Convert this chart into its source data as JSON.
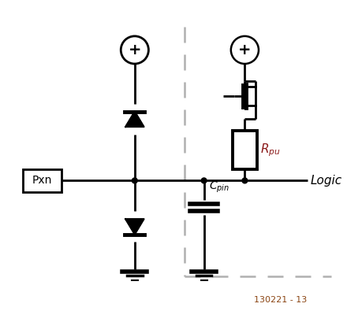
{
  "bg_color": "#ffffff",
  "line_color": "#000000",
  "dashed_color": "#b0b0b0",
  "label_color_logic": "#000000",
  "label_color_rpu": "#8B1a1a",
  "label_color_cpin": "#000000",
  "label_color_pxn": "#000000",
  "label_color_ref": "#8B4513",
  "fig_width": 4.4,
  "fig_height": 4.09,
  "dpi": 100
}
